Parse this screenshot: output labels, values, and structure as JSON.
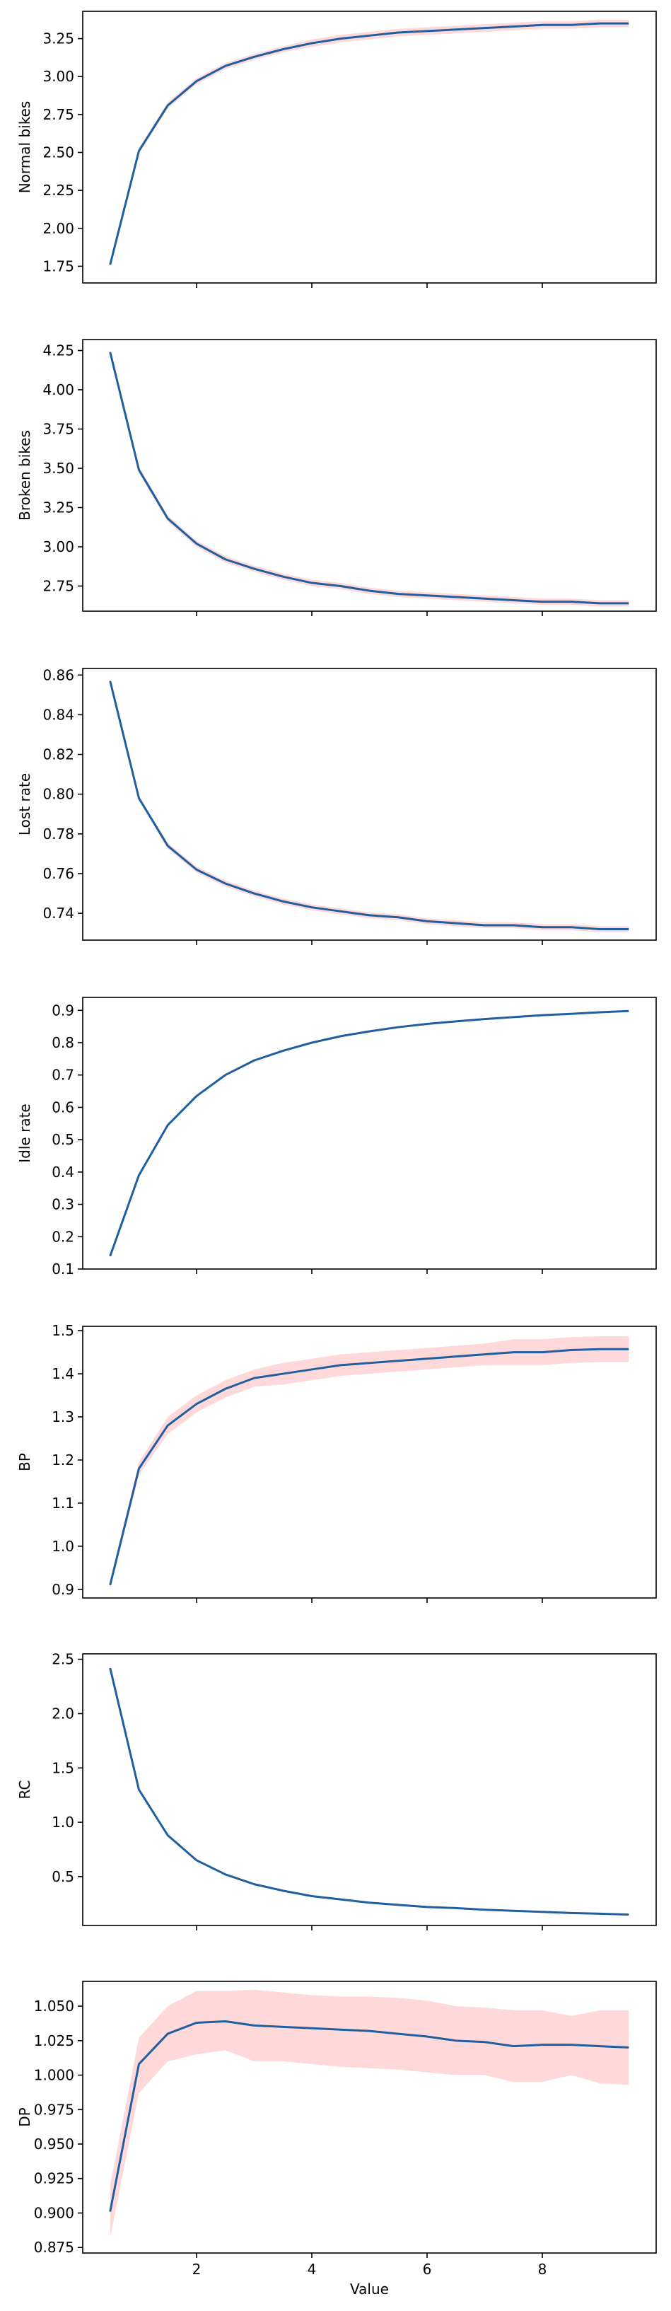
{
  "chart_data": [
    {
      "type": "line",
      "xlabel": "",
      "ylabel": "Normal bikes",
      "xlim": [
        0.025,
        9.975
      ],
      "ylim": [
        1.64,
        3.43
      ],
      "yticks": [
        "1.75",
        "2.00",
        "2.25",
        "2.50",
        "2.75",
        "3.00",
        "3.25"
      ],
      "x": [
        0.5,
        1,
        1.5,
        2,
        2.5,
        3,
        3.5,
        4,
        4.5,
        5,
        5.5,
        6,
        6.5,
        7,
        7.5,
        8,
        8.5,
        9,
        9.5
      ],
      "series": [
        {
          "values": [
            1.76,
            2.51,
            2.81,
            2.97,
            3.07,
            3.13,
            3.18,
            3.22,
            3.25,
            3.27,
            3.29,
            3.3,
            3.31,
            3.32,
            3.33,
            3.34,
            3.34,
            3.35,
            3.35
          ]
        }
      ],
      "band_half": [
        0.01,
        0.02,
        0.02,
        0.02,
        0.02,
        0.02,
        0.02,
        0.025,
        0.025,
        0.025,
        0.025,
        0.025,
        0.025,
        0.025,
        0.025,
        0.025,
        0.025,
        0.025,
        0.025
      ],
      "line_color": "#1f5fa0",
      "band_color": "#ffd9d9"
    },
    {
      "type": "line",
      "xlabel": "",
      "ylabel": "Broken bikes",
      "xlim": [
        0.025,
        9.975
      ],
      "ylim": [
        2.59,
        4.32
      ],
      "yticks": [
        "2.75",
        "3.00",
        "3.25",
        "3.50",
        "3.75",
        "4.00",
        "4.25"
      ],
      "x": [
        0.5,
        1,
        1.5,
        2,
        2.5,
        3,
        3.5,
        4,
        4.5,
        5,
        5.5,
        6,
        6.5,
        7,
        7.5,
        8,
        8.5,
        9,
        9.5
      ],
      "series": [
        {
          "values": [
            4.24,
            3.49,
            3.18,
            3.02,
            2.92,
            2.86,
            2.81,
            2.77,
            2.75,
            2.72,
            2.7,
            2.69,
            2.68,
            2.67,
            2.66,
            2.65,
            2.65,
            2.64,
            2.64
          ]
        }
      ],
      "band_half": [
        0.01,
        0.02,
        0.02,
        0.02,
        0.02,
        0.02,
        0.02,
        0.02,
        0.02,
        0.02,
        0.02,
        0.02,
        0.02,
        0.02,
        0.02,
        0.02,
        0.02,
        0.02,
        0.02
      ],
      "line_color": "#1f5fa0",
      "band_color": "#ffd9d9"
    },
    {
      "type": "line",
      "xlabel": "",
      "ylabel": "Lost rate",
      "xlim": [
        0.025,
        9.975
      ],
      "ylim": [
        0.7265,
        0.8633
      ],
      "yticks": [
        "0.74",
        "0.76",
        "0.78",
        "0.80",
        "0.82",
        "0.84",
        "0.86"
      ],
      "x": [
        0.5,
        1,
        1.5,
        2,
        2.5,
        3,
        3.5,
        4,
        4.5,
        5,
        5.5,
        6,
        6.5,
        7,
        7.5,
        8,
        8.5,
        9,
        9.5
      ],
      "series": [
        {
          "values": [
            0.857,
            0.798,
            0.774,
            0.762,
            0.755,
            0.75,
            0.746,
            0.743,
            0.741,
            0.739,
            0.738,
            0.736,
            0.735,
            0.734,
            0.734,
            0.733,
            0.733,
            0.732,
            0.732
          ]
        }
      ],
      "band_half": [
        0.0005,
        0.001,
        0.0015,
        0.0015,
        0.0015,
        0.0015,
        0.0015,
        0.0015,
        0.0015,
        0.0015,
        0.0015,
        0.0015,
        0.0015,
        0.0015,
        0.0015,
        0.0015,
        0.0015,
        0.0015,
        0.0015
      ],
      "line_color": "#1f5fa0",
      "band_color": "#ffd9d9"
    },
    {
      "type": "line",
      "xlabel": "",
      "ylabel": "Idle rate",
      "xlim": [
        0.025,
        9.975
      ],
      "ylim": [
        0.1,
        0.94
      ],
      "yticks": [
        "0.1",
        "0.2",
        "0.3",
        "0.4",
        "0.5",
        "0.6",
        "0.7",
        "0.8",
        "0.9"
      ],
      "x": [
        0.5,
        1,
        1.5,
        2,
        2.5,
        3,
        3.5,
        4,
        4.5,
        5,
        5.5,
        6,
        6.5,
        7,
        7.5,
        8,
        8.5,
        9,
        9.5
      ],
      "series": [
        {
          "values": [
            0.14,
            0.39,
            0.545,
            0.635,
            0.7,
            0.745,
            0.775,
            0.8,
            0.82,
            0.835,
            0.848,
            0.858,
            0.866,
            0.873,
            0.879,
            0.885,
            0.889,
            0.894,
            0.898
          ]
        }
      ],
      "band_half": [
        0.002,
        0.002,
        0.002,
        0.002,
        0.002,
        0.002,
        0.002,
        0.002,
        0.002,
        0.002,
        0.002,
        0.002,
        0.002,
        0.002,
        0.002,
        0.002,
        0.002,
        0.002,
        0.002
      ],
      "line_color": "#1f5fa0",
      "band_color": "#ffd9d9"
    },
    {
      "type": "line",
      "xlabel": "",
      "ylabel": "BP",
      "xlim": [
        0.025,
        9.975
      ],
      "ylim": [
        0.88,
        1.51
      ],
      "yticks": [
        "0.9",
        "1.0",
        "1.1",
        "1.2",
        "1.3",
        "1.4",
        "1.5"
      ],
      "x": [
        0.5,
        1,
        1.5,
        2,
        2.5,
        3,
        3.5,
        4,
        4.5,
        5,
        5.5,
        6,
        6.5,
        7,
        7.5,
        8,
        8.5,
        9,
        9.5
      ],
      "series": [
        {
          "values": [
            0.91,
            1.18,
            1.28,
            1.33,
            1.365,
            1.39,
            1.4,
            1.41,
            1.42,
            1.425,
            1.43,
            1.435,
            1.44,
            1.445,
            1.45,
            1.45,
            1.455,
            1.457,
            1.457
          ]
        }
      ],
      "band_half": [
        0.01,
        0.015,
        0.02,
        0.02,
        0.02,
        0.02,
        0.025,
        0.025,
        0.025,
        0.025,
        0.025,
        0.025,
        0.025,
        0.025,
        0.03,
        0.03,
        0.03,
        0.03,
        0.03
      ],
      "line_color": "#1f5fa0",
      "band_color": "#ffd9d9"
    },
    {
      "type": "line",
      "xlabel": "",
      "ylabel": "RC",
      "xlim": [
        0.025,
        9.975
      ],
      "ylim": [
        0.05,
        2.55
      ],
      "yticks": [
        "0.5",
        "1.0",
        "1.5",
        "2.0",
        "2.5"
      ],
      "x": [
        0.5,
        1,
        1.5,
        2,
        2.5,
        3,
        3.5,
        4,
        4.5,
        5,
        5.5,
        6,
        6.5,
        7,
        7.5,
        8,
        8.5,
        9,
        9.5
      ],
      "series": [
        {
          "values": [
            2.42,
            1.3,
            0.88,
            0.65,
            0.52,
            0.43,
            0.37,
            0.32,
            0.29,
            0.26,
            0.24,
            0.22,
            0.21,
            0.195,
            0.185,
            0.175,
            0.165,
            0.158,
            0.15
          ]
        }
      ],
      "band_half": [
        0.005,
        0.005,
        0.005,
        0.005,
        0.005,
        0.005,
        0.005,
        0.005,
        0.005,
        0.005,
        0.005,
        0.005,
        0.005,
        0.005,
        0.005,
        0.005,
        0.005,
        0.005,
        0.005
      ],
      "line_color": "#1f5fa0",
      "band_color": "#ffd9d9"
    },
    {
      "type": "line",
      "xlabel": "Value",
      "ylabel": "DP",
      "xlim": [
        0.025,
        9.975
      ],
      "ylim": [
        0.871,
        1.068
      ],
      "yticks": [
        "0.875",
        "0.900",
        "0.925",
        "0.950",
        "0.975",
        "1.000",
        "1.025",
        "1.050"
      ],
      "xticks": [
        "2",
        "4",
        "6",
        "8"
      ],
      "x": [
        0.5,
        1,
        1.5,
        2,
        2.5,
        3,
        3.5,
        4,
        4.5,
        5,
        5.5,
        6,
        6.5,
        7,
        7.5,
        8,
        8.5,
        9,
        9.5
      ],
      "series": [
        {
          "values": [
            0.901,
            1.008,
            1.03,
            1.038,
            1.039,
            1.036,
            1.035,
            1.034,
            1.033,
            1.032,
            1.03,
            1.028,
            1.025,
            1.024,
            1.021,
            1.022,
            1.022,
            1.021,
            1.02
          ]
        }
      ],
      "band_lo": [
        0.882,
        0.987,
        1.01,
        1.015,
        1.018,
        1.01,
        1.01,
        1.008,
        1.006,
        1.005,
        1.004,
        1.002,
        1.0,
        1.0,
        0.995,
        0.995,
        1.0,
        0.994,
        0.993
      ],
      "band_hi": [
        0.92,
        1.027,
        1.05,
        1.061,
        1.061,
        1.062,
        1.06,
        1.058,
        1.057,
        1.057,
        1.056,
        1.054,
        1.05,
        1.049,
        1.047,
        1.047,
        1.043,
        1.047,
        1.047
      ],
      "line_color": "#1f5fa0",
      "band_color": "#ffd9d9"
    }
  ]
}
